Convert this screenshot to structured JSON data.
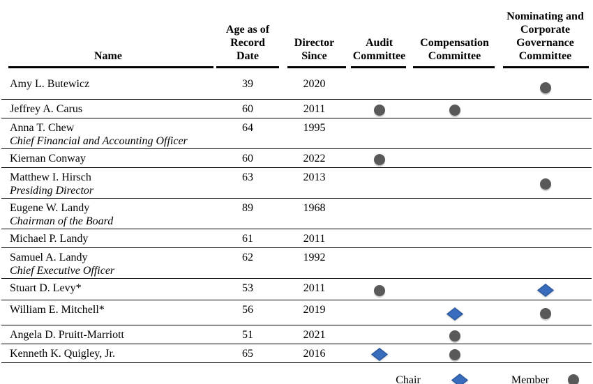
{
  "header": {
    "columns": [
      {
        "key": "name",
        "label": "Name"
      },
      {
        "key": "age",
        "label": "Age as of\nRecord\nDate"
      },
      {
        "key": "since",
        "label": "Director\nSince"
      },
      {
        "key": "audit",
        "label": "Audit\nCommittee"
      },
      {
        "key": "compensation",
        "label": "Compensation\nCommittee"
      },
      {
        "key": "nominating",
        "label": "Nominating and\nCorporate\nGovernance\nCommittee"
      }
    ]
  },
  "rows": [
    {
      "name": "Amy L. Butewicz",
      "title": "",
      "age": "39",
      "since": "2020",
      "audit": "",
      "compensation": "",
      "nominating": "member"
    },
    {
      "name": "Jeffrey A. Carus",
      "title": "",
      "age": "60",
      "since": "2011",
      "audit": "member",
      "compensation": "member",
      "nominating": ""
    },
    {
      "name": "Anna T. Chew",
      "title": "Chief Financial and Accounting Officer",
      "age": "64",
      "since": "1995",
      "audit": "",
      "compensation": "",
      "nominating": ""
    },
    {
      "name": "Kiernan Conway",
      "title": "",
      "age": "60",
      "since": "2022",
      "audit": "member",
      "compensation": "",
      "nominating": ""
    },
    {
      "name": "Matthew I. Hirsch",
      "title": "Presiding Director",
      "age": "63",
      "since": "2013",
      "audit": "",
      "compensation": "",
      "nominating": "member"
    },
    {
      "name": "Eugene W. Landy",
      "title": "Chairman of the Board",
      "age": "89",
      "since": "1968",
      "audit": "",
      "compensation": "",
      "nominating": ""
    },
    {
      "name": "Michael P. Landy",
      "title": "",
      "age": "61",
      "since": "2011",
      "audit": "",
      "compensation": "",
      "nominating": ""
    },
    {
      "name": "Samuel A. Landy",
      "title": "Chief Executive Officer",
      "age": "62",
      "since": "1992",
      "audit": "",
      "compensation": "",
      "nominating": ""
    },
    {
      "name": "Stuart D. Levy*",
      "title": "",
      "age": "53",
      "since": "2011",
      "audit": "member",
      "compensation": "",
      "nominating": "chair"
    },
    {
      "name": "William E. Mitchell*",
      "title": "",
      "age": "56",
      "since": "2019",
      "audit": "",
      "compensation": "chair",
      "nominating": "member"
    },
    {
      "name": "Angela D. Pruitt-Marriott",
      "title": "",
      "age": "51",
      "since": "2021",
      "audit": "",
      "compensation": "member",
      "nominating": ""
    },
    {
      "name": "Kenneth K. Quigley, Jr.",
      "title": "",
      "age": "65",
      "since": "2016",
      "audit": "chair",
      "compensation": "member",
      "nominating": ""
    }
  ],
  "legend": {
    "chair_label": "Chair",
    "member_label": "Member"
  },
  "colors": {
    "chair_fill": "#3A6CBE",
    "chair_stroke": "#2B5AA0",
    "member_fill": "#595959",
    "line": "#000000"
  }
}
